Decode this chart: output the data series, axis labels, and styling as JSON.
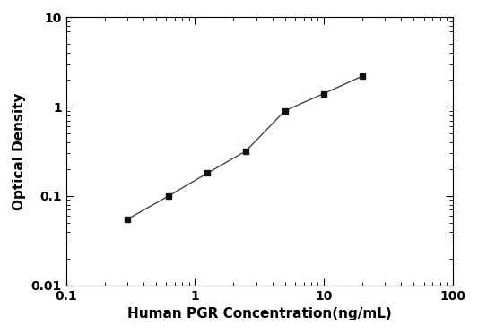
{
  "x": [
    0.3,
    0.625,
    1.25,
    2.5,
    5,
    10,
    20
  ],
  "y": [
    0.055,
    0.1,
    0.18,
    0.32,
    0.9,
    1.4,
    2.2
  ],
  "xlabel": "Human PGR Concentration(ng/mL)",
  "ylabel": "Optical Density",
  "xlim": [
    0.1,
    100
  ],
  "ylim": [
    0.01,
    10
  ],
  "line_color": "#444444",
  "marker_color": "#111111",
  "marker": "s",
  "marker_size": 5,
  "line_width": 1.0,
  "background_color": "#ffffff",
  "font_weight": "bold",
  "label_fontsize": 11,
  "tick_fontsize": 10
}
